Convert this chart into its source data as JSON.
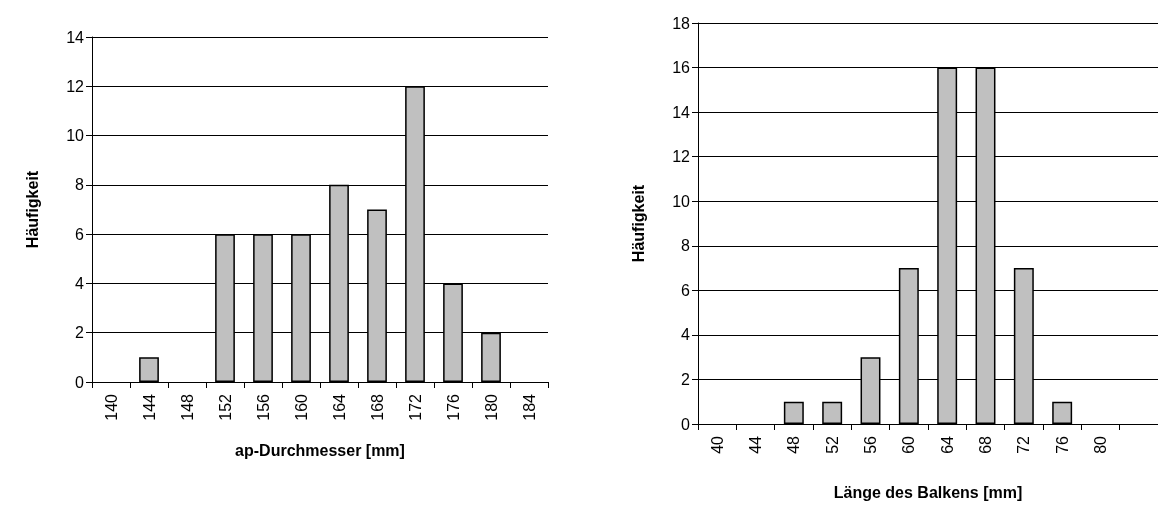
{
  "chart_data": [
    {
      "type": "bar",
      "xlabel": "ap-Durchmesser [mm]",
      "ylabel": "Häufigkeit",
      "categories": [
        "140",
        "144",
        "148",
        "152",
        "156",
        "160",
        "164",
        "168",
        "172",
        "176",
        "180",
        "184"
      ],
      "values": [
        0,
        1,
        0,
        6,
        6,
        6,
        8,
        7,
        12,
        4,
        2,
        0
      ],
      "color": "#c0c0c0",
      "ylim": [
        0,
        14
      ],
      "yticks": [
        0,
        2,
        4,
        6,
        8,
        10,
        12,
        14
      ],
      "grid": "y"
    },
    {
      "type": "bar",
      "xlabel": "Länge des Balkens [mm]",
      "ylabel": "Häufigkeit",
      "categories": [
        "40",
        "44",
        "48",
        "52",
        "56",
        "60",
        "64",
        "68",
        "72",
        "76",
        "80",
        null
      ],
      "values": [
        0,
        0,
        1,
        1,
        3,
        7,
        16,
        16,
        7,
        1,
        0,
        0
      ],
      "color": "#c0c0c0",
      "ylim": [
        0,
        18
      ],
      "yticks": [
        0,
        2,
        4,
        6,
        8,
        10,
        12,
        14,
        16,
        18
      ],
      "grid": "y"
    }
  ]
}
